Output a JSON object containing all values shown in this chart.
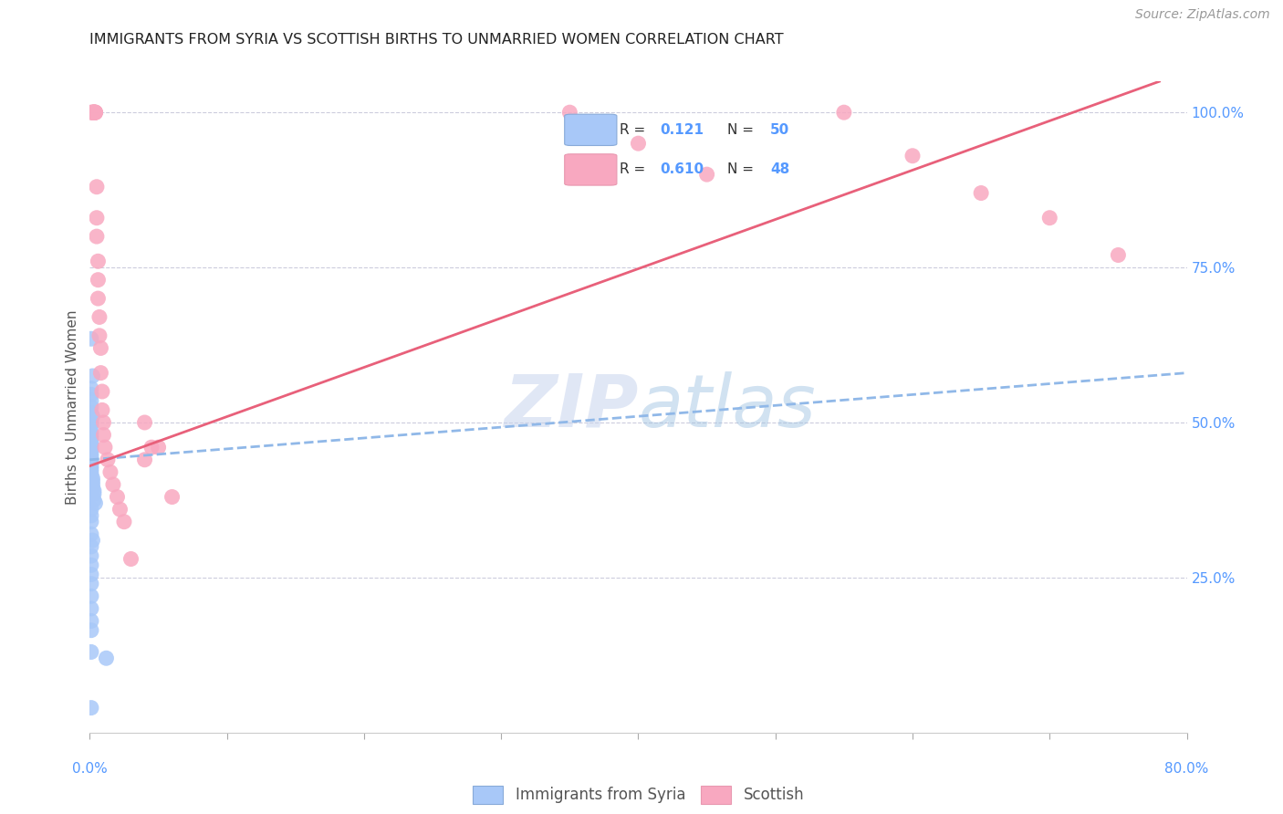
{
  "title": "IMMIGRANTS FROM SYRIA VS SCOTTISH BIRTHS TO UNMARRIED WOMEN CORRELATION CHART",
  "source": "Source: ZipAtlas.com",
  "ylabel": "Births to Unmarried Women",
  "legend_label1": "Immigrants from Syria",
  "legend_label2": "Scottish",
  "blue_color": "#a8c8f8",
  "pink_color": "#f8a8c0",
  "blue_line_color": "#90b8e8",
  "pink_line_color": "#e8607a",
  "title_color": "#222222",
  "source_color": "#999999",
  "axis_label_color": "#5599ff",
  "watermark_color": "#d0dff5",
  "blue_scatter": {
    "x": [
      0.001,
      0.002,
      0.001,
      0.001,
      0.001,
      0.001,
      0.001,
      0.002,
      0.001,
      0.001,
      0.001,
      0.001,
      0.001,
      0.001,
      0.001,
      0.001,
      0.001,
      0.001,
      0.001,
      0.001,
      0.001,
      0.001,
      0.001,
      0.001,
      0.001,
      0.002,
      0.002,
      0.002,
      0.002,
      0.003,
      0.003,
      0.003,
      0.004,
      0.001,
      0.001,
      0.001,
      0.001,
      0.002,
      0.001,
      0.001,
      0.001,
      0.001,
      0.001,
      0.001,
      0.001,
      0.001,
      0.001,
      0.001,
      0.012,
      0.001
    ],
    "y": [
      0.635,
      0.575,
      0.555,
      0.545,
      0.535,
      0.525,
      0.515,
      0.51,
      0.5,
      0.495,
      0.485,
      0.48,
      0.475,
      0.47,
      0.465,
      0.46,
      0.455,
      0.45,
      0.445,
      0.44,
      0.435,
      0.43,
      0.425,
      0.42,
      0.415,
      0.41,
      0.405,
      0.4,
      0.395,
      0.39,
      0.385,
      0.375,
      0.37,
      0.36,
      0.35,
      0.34,
      0.32,
      0.31,
      0.3,
      0.285,
      0.27,
      0.255,
      0.24,
      0.22,
      0.2,
      0.18,
      0.165,
      0.13,
      0.12,
      0.04
    ]
  },
  "pink_scatter": {
    "x": [
      0.001,
      0.002,
      0.002,
      0.003,
      0.003,
      0.003,
      0.003,
      0.003,
      0.003,
      0.004,
      0.004,
      0.004,
      0.004,
      0.005,
      0.005,
      0.005,
      0.006,
      0.006,
      0.006,
      0.007,
      0.007,
      0.008,
      0.008,
      0.009,
      0.009,
      0.01,
      0.01,
      0.011,
      0.013,
      0.015,
      0.017,
      0.02,
      0.022,
      0.025,
      0.03,
      0.04,
      0.04,
      0.045,
      0.05,
      0.06,
      0.35,
      0.4,
      0.45,
      0.55,
      0.6,
      0.65,
      0.7,
      0.75
    ],
    "y": [
      1.0,
      1.0,
      1.0,
      1.0,
      1.0,
      1.0,
      1.0,
      1.0,
      1.0,
      1.0,
      1.0,
      1.0,
      1.0,
      0.88,
      0.83,
      0.8,
      0.76,
      0.73,
      0.7,
      0.67,
      0.64,
      0.62,
      0.58,
      0.55,
      0.52,
      0.5,
      0.48,
      0.46,
      0.44,
      0.42,
      0.4,
      0.38,
      0.36,
      0.34,
      0.28,
      0.44,
      0.5,
      0.46,
      0.46,
      0.38,
      1.0,
      0.95,
      0.9,
      1.0,
      0.93,
      0.87,
      0.83,
      0.77
    ]
  },
  "blue_line": {
    "x0": 0.0,
    "y0": 0.44,
    "x1": 0.8,
    "y1": 0.58
  },
  "pink_line": {
    "x0": 0.0,
    "y0": 0.43,
    "x1": 0.78,
    "y1": 1.05
  },
  "xlim": [
    0.0,
    0.8
  ],
  "ylim": [
    0.0,
    1.05
  ],
  "ytick_positions": [
    0.25,
    0.5,
    0.75,
    1.0
  ],
  "ytick_labels": [
    "25.0%",
    "50.0%",
    "75.0%",
    "100.0%"
  ],
  "xtick_positions": [
    0.0,
    0.1,
    0.2,
    0.3,
    0.4,
    0.5,
    0.6,
    0.7,
    0.8
  ]
}
